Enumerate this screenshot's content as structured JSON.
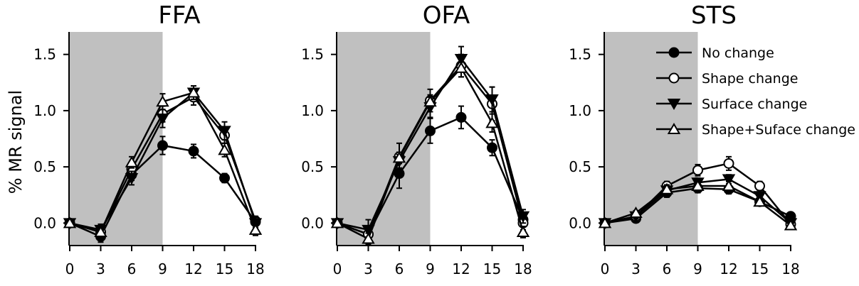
{
  "figure": {
    "ylabel": "% MR signal"
  },
  "chart_data": [
    {
      "type": "line",
      "title": "FFA",
      "x": [
        0,
        3,
        6,
        9,
        12,
        15,
        18
      ],
      "xticks": [
        "0",
        "3",
        "6",
        "9",
        "12",
        "15",
        "18"
      ],
      "yticks": [
        "0.0",
        "0.5",
        "1.0",
        "1.5"
      ],
      "xlim": [
        0,
        18
      ],
      "ylim": [
        -0.2,
        1.7
      ],
      "shaded_x_range": [
        0,
        9
      ],
      "series": [
        {
          "name": "No change",
          "marker": "circle-filled",
          "values": [
            0.0,
            -0.12,
            0.43,
            0.69,
            0.64,
            0.4,
            0.01
          ],
          "err": [
            0.02,
            0.05,
            0.05,
            0.08,
            0.06,
            0.04,
            0.05
          ]
        },
        {
          "name": "Shape change",
          "marker": "circle-open",
          "values": [
            0.0,
            -0.08,
            0.48,
            0.97,
            1.12,
            0.78,
            0.02
          ],
          "err": [
            0.02,
            0.05,
            0.05,
            0.07,
            0.07,
            0.07,
            0.04
          ]
        },
        {
          "name": "Surface change",
          "marker": "triangle-down-filled",
          "values": [
            0.0,
            -0.06,
            0.4,
            0.93,
            1.16,
            0.82,
            0.0
          ],
          "err": [
            0.02,
            0.05,
            0.06,
            0.08,
            0.06,
            0.08,
            0.05
          ]
        },
        {
          "name": "Shape+Suface change",
          "marker": "triangle-up-open",
          "values": [
            0.0,
            -0.08,
            0.54,
            1.08,
            1.16,
            0.65,
            -0.06
          ],
          "err": [
            0.02,
            0.04,
            0.05,
            0.07,
            0.06,
            0.06,
            0.05
          ]
        }
      ]
    },
    {
      "type": "line",
      "title": "OFA",
      "x": [
        0,
        3,
        6,
        9,
        12,
        15,
        18
      ],
      "xticks": [
        "0",
        "3",
        "6",
        "9",
        "12",
        "15",
        "18"
      ],
      "yticks": [
        "0.0",
        "0.5",
        "1.0",
        "1.5"
      ],
      "xlim": [
        0,
        18
      ],
      "ylim": [
        -0.2,
        1.7
      ],
      "shaded_x_range": [
        0,
        9
      ],
      "series": [
        {
          "name": "No change",
          "marker": "circle-filled",
          "values": [
            0.0,
            -0.1,
            0.44,
            0.82,
            0.94,
            0.67,
            0.03
          ],
          "err": [
            0.02,
            0.06,
            0.13,
            0.11,
            0.1,
            0.07,
            0.06
          ]
        },
        {
          "name": "Shape change",
          "marker": "circle-open",
          "values": [
            0.0,
            -0.1,
            0.59,
            1.09,
            1.4,
            1.06,
            0.0
          ],
          "err": [
            0.02,
            0.07,
            0.12,
            0.1,
            0.1,
            0.15,
            0.06
          ]
        },
        {
          "name": "Surface change",
          "marker": "triangle-down-filled",
          "values": [
            0.0,
            -0.06,
            0.55,
            1.03,
            1.46,
            1.1,
            0.06
          ],
          "err": [
            0.02,
            0.09,
            0.06,
            0.09,
            0.11,
            0.11,
            0.06
          ]
        },
        {
          "name": "Shape+Suface change",
          "marker": "triangle-up-open",
          "values": [
            0.0,
            -0.14,
            0.58,
            1.08,
            1.38,
            0.89,
            -0.08
          ],
          "err": [
            0.02,
            0.05,
            0.05,
            0.06,
            0.08,
            0.08,
            0.05
          ]
        }
      ]
    },
    {
      "type": "line",
      "title": "STS",
      "x": [
        0,
        3,
        6,
        9,
        12,
        15,
        18
      ],
      "xticks": [
        "0",
        "3",
        "6",
        "9",
        "12",
        "15",
        "18"
      ],
      "yticks": [
        "0.0",
        "0.5",
        "1.0",
        "1.5"
      ],
      "xlim": [
        0,
        18
      ],
      "ylim": [
        -0.2,
        1.7
      ],
      "shaded_x_range": [
        0,
        9
      ],
      "legend_position": "top-right",
      "series": [
        {
          "name": "No change",
          "marker": "circle-filled",
          "values": [
            0.0,
            0.04,
            0.27,
            0.31,
            0.3,
            0.19,
            0.06
          ],
          "err": [
            0.01,
            0.02,
            0.04,
            0.04,
            0.04,
            0.03,
            0.02
          ]
        },
        {
          "name": "Shape change",
          "marker": "circle-open",
          "values": [
            0.0,
            0.06,
            0.33,
            0.47,
            0.53,
            0.33,
            -0.01
          ],
          "err": [
            0.01,
            0.02,
            0.04,
            0.05,
            0.06,
            0.04,
            0.02
          ]
        },
        {
          "name": "Surface change",
          "marker": "triangle-down-filled",
          "values": [
            0.0,
            0.06,
            0.29,
            0.36,
            0.39,
            0.24,
            0.0
          ],
          "err": [
            0.01,
            0.02,
            0.04,
            0.04,
            0.04,
            0.03,
            0.02
          ]
        },
        {
          "name": "Shape+Suface change",
          "marker": "triangle-up-open",
          "values": [
            0.0,
            0.09,
            0.3,
            0.33,
            0.33,
            0.19,
            -0.02
          ],
          "err": [
            0.01,
            0.02,
            0.04,
            0.04,
            0.04,
            0.03,
            0.02
          ]
        }
      ]
    }
  ]
}
